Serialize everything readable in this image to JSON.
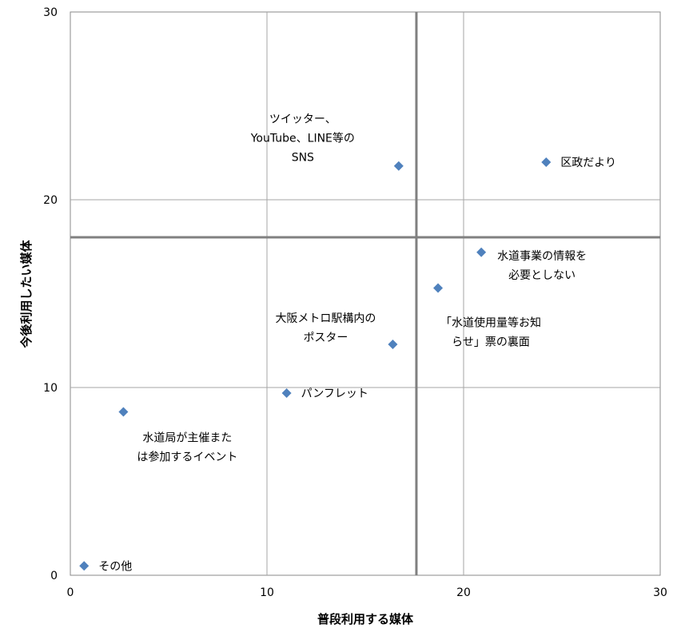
{
  "chart_data": {
    "type": "scatter",
    "title": "",
    "xlabel": "普段利用する媒体",
    "ylabel": "今後利用したい媒体",
    "xlim": [
      0,
      30
    ],
    "ylim": [
      0,
      30
    ],
    "x_ticks": [
      "0",
      "10",
      "20",
      "30"
    ],
    "y_ticks": [
      "0",
      "10",
      "20",
      "30"
    ],
    "grid": true,
    "reference_lines": {
      "x": 17.6,
      "y": 18.0
    },
    "marker_color": "#4F81BD",
    "marker_shape": "diamond",
    "points": [
      {
        "x": 16.7,
        "y": 21.8,
        "label_lines": [
          "ツイッター、",
          "YouTube、LINE等の",
          "SNS"
        ]
      },
      {
        "x": 24.2,
        "y": 22.0,
        "label_lines": [
          "区政だより"
        ]
      },
      {
        "x": 20.9,
        "y": 17.2,
        "label_lines": [
          "水道事業の情報を",
          "必要としない"
        ]
      },
      {
        "x": 18.7,
        "y": 15.3,
        "label_lines": [
          "「水道使用量等お知",
          "らせ」票の裏面"
        ]
      },
      {
        "x": 16.4,
        "y": 12.3,
        "label_lines": [
          "大阪メトロ駅構内の",
          "ポスター"
        ]
      },
      {
        "x": 11.0,
        "y": 9.7,
        "label_lines": [
          "パンフレット"
        ]
      },
      {
        "x": 2.7,
        "y": 8.7,
        "label_lines": [
          "水道局が主催また",
          "は参加するイベント"
        ]
      },
      {
        "x": 0.7,
        "y": 0.5,
        "label_lines": [
          "その他"
        ]
      }
    ]
  }
}
